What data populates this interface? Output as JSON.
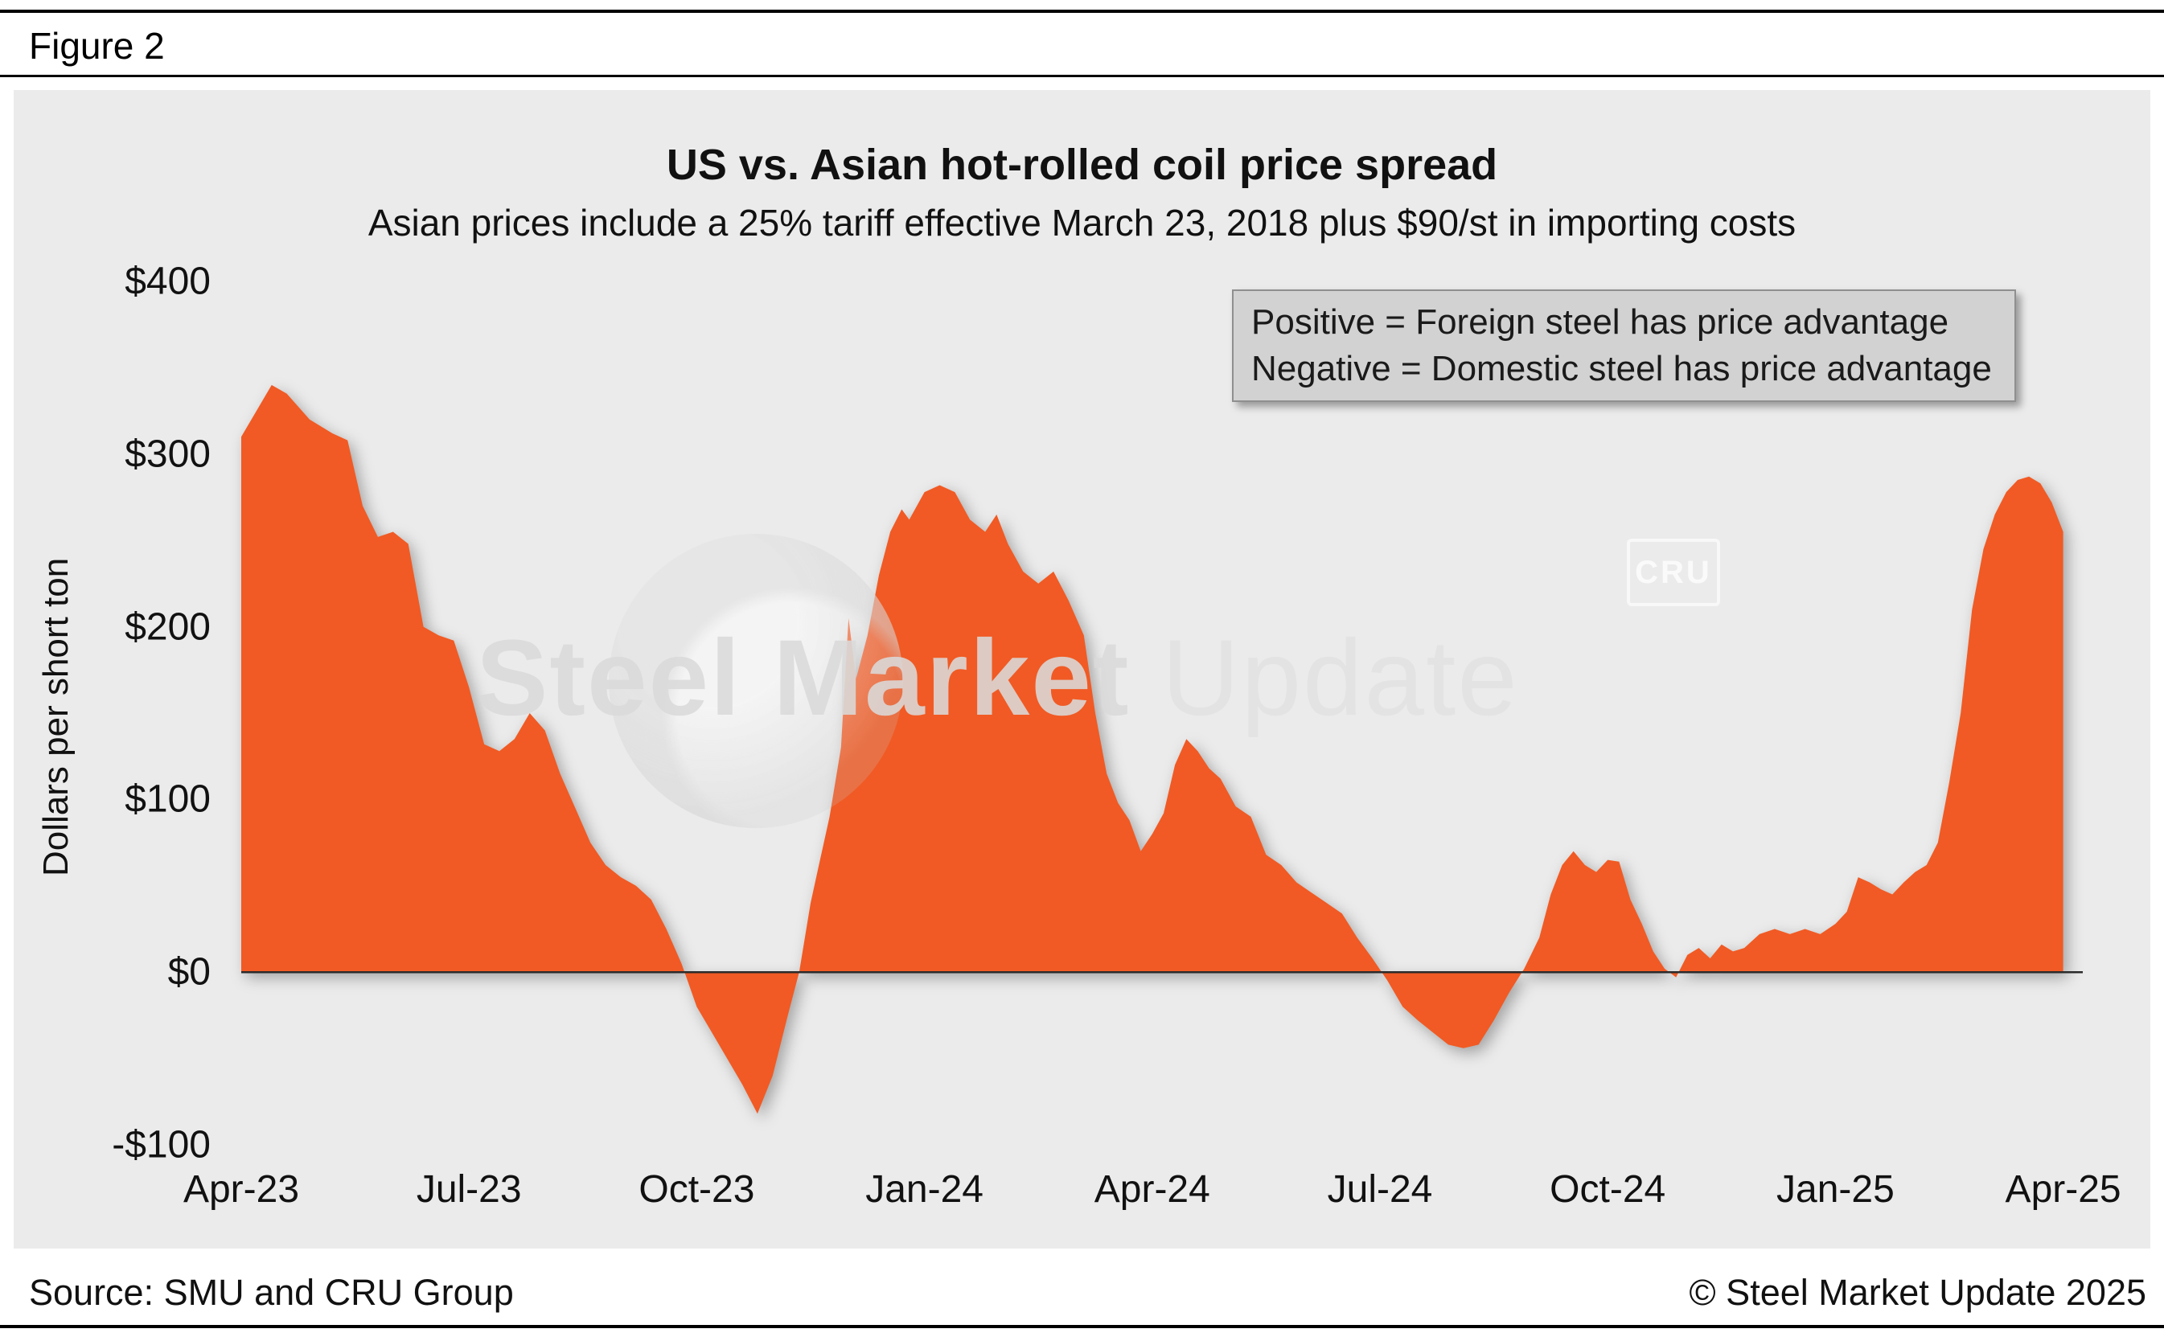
{
  "figure_label": "Figure 2",
  "chart_data": {
    "type": "area",
    "title": "US vs. Asian hot-rolled coil price spread",
    "subtitle": "Asian prices include a 25% tariff effective March 23, 2018 plus $90/st in importing costs",
    "ylabel": "Dollars per short ton",
    "ylim": [
      -100,
      400
    ],
    "xlim_months": [
      0,
      24.3
    ],
    "baseline": 0,
    "grid": false,
    "y_ticks": [
      {
        "value": 400,
        "label": "$400"
      },
      {
        "value": 300,
        "label": "$300"
      },
      {
        "value": 200,
        "label": "$200"
      },
      {
        "value": 100,
        "label": "$100"
      },
      {
        "value": 0,
        "label": "$0"
      },
      {
        "value": -100,
        "label": "-$100"
      }
    ],
    "x_ticks": [
      {
        "month": 0,
        "label": "Apr-23"
      },
      {
        "month": 3,
        "label": "Jul-23"
      },
      {
        "month": 6,
        "label": "Oct-23"
      },
      {
        "month": 9,
        "label": "Jan-24"
      },
      {
        "month": 12,
        "label": "Apr-24"
      },
      {
        "month": 15,
        "label": "Jul-24"
      },
      {
        "month": 18,
        "label": "Oct-24"
      },
      {
        "month": 21,
        "label": "Jan-25"
      },
      {
        "month": 24,
        "label": "Apr-25"
      }
    ],
    "annotation_box": {
      "lines": [
        "Positive = Foreign steel has price advantage",
        "Negative = Domestic steel has price advantage"
      ]
    },
    "series": [
      {
        "name": "US vs. Asian HRC price spread ($/short ton)",
        "color": "#f15a24",
        "points": [
          [
            0,
            310
          ],
          [
            0.2,
            325
          ],
          [
            0.4,
            340
          ],
          [
            0.6,
            335
          ],
          [
            0.9,
            320
          ],
          [
            1.2,
            312
          ],
          [
            1.4,
            308
          ],
          [
            1.6,
            270
          ],
          [
            1.8,
            252
          ],
          [
            2.0,
            255
          ],
          [
            2.2,
            248
          ],
          [
            2.4,
            200
          ],
          [
            2.6,
            195
          ],
          [
            2.8,
            192
          ],
          [
            3.0,
            165
          ],
          [
            3.2,
            132
          ],
          [
            3.4,
            128
          ],
          [
            3.6,
            135
          ],
          [
            3.8,
            150
          ],
          [
            4.0,
            140
          ],
          [
            4.2,
            115
          ],
          [
            4.4,
            95
          ],
          [
            4.6,
            75
          ],
          [
            4.8,
            62
          ],
          [
            5.0,
            55
          ],
          [
            5.2,
            50
          ],
          [
            5.4,
            42
          ],
          [
            5.6,
            25
          ],
          [
            5.8,
            5
          ],
          [
            6.0,
            -20
          ],
          [
            6.2,
            -35
          ],
          [
            6.4,
            -50
          ],
          [
            6.6,
            -65
          ],
          [
            6.8,
            -82
          ],
          [
            7.0,
            -60
          ],
          [
            7.2,
            -25
          ],
          [
            7.35,
            0
          ],
          [
            7.5,
            40
          ],
          [
            7.6,
            60
          ],
          [
            7.75,
            90
          ],
          [
            7.9,
            130
          ],
          [
            8.0,
            205
          ],
          [
            8.1,
            170
          ],
          [
            8.25,
            195
          ],
          [
            8.4,
            230
          ],
          [
            8.55,
            255
          ],
          [
            8.7,
            268
          ],
          [
            8.8,
            262
          ],
          [
            9.0,
            278
          ],
          [
            9.2,
            282
          ],
          [
            9.4,
            278
          ],
          [
            9.6,
            262
          ],
          [
            9.8,
            255
          ],
          [
            9.95,
            265
          ],
          [
            10.1,
            248
          ],
          [
            10.3,
            232
          ],
          [
            10.5,
            225
          ],
          [
            10.7,
            232
          ],
          [
            10.9,
            215
          ],
          [
            11.1,
            195
          ],
          [
            11.25,
            150
          ],
          [
            11.4,
            115
          ],
          [
            11.55,
            98
          ],
          [
            11.7,
            88
          ],
          [
            11.85,
            70
          ],
          [
            12.0,
            80
          ],
          [
            12.15,
            92
          ],
          [
            12.3,
            120
          ],
          [
            12.45,
            135
          ],
          [
            12.6,
            128
          ],
          [
            12.75,
            118
          ],
          [
            12.9,
            112
          ],
          [
            13.1,
            96
          ],
          [
            13.3,
            90
          ],
          [
            13.5,
            68
          ],
          [
            13.7,
            62
          ],
          [
            13.9,
            52
          ],
          [
            14.1,
            46
          ],
          [
            14.3,
            40
          ],
          [
            14.5,
            34
          ],
          [
            14.7,
            20
          ],
          [
            14.9,
            8
          ],
          [
            15.1,
            -5
          ],
          [
            15.3,
            -20
          ],
          [
            15.5,
            -28
          ],
          [
            15.7,
            -35
          ],
          [
            15.9,
            -42
          ],
          [
            16.1,
            -44
          ],
          [
            16.3,
            -42
          ],
          [
            16.5,
            -28
          ],
          [
            16.7,
            -12
          ],
          [
            16.9,
            2
          ],
          [
            17.1,
            20
          ],
          [
            17.25,
            45
          ],
          [
            17.4,
            62
          ],
          [
            17.55,
            70
          ],
          [
            17.7,
            62
          ],
          [
            17.85,
            58
          ],
          [
            18.0,
            65
          ],
          [
            18.15,
            64
          ],
          [
            18.3,
            42
          ],
          [
            18.45,
            28
          ],
          [
            18.6,
            12
          ],
          [
            18.75,
            2
          ],
          [
            18.9,
            -3
          ],
          [
            19.05,
            10
          ],
          [
            19.2,
            14
          ],
          [
            19.35,
            8
          ],
          [
            19.5,
            16
          ],
          [
            19.65,
            12
          ],
          [
            19.8,
            14
          ],
          [
            20.0,
            22
          ],
          [
            20.2,
            25
          ],
          [
            20.4,
            22
          ],
          [
            20.6,
            25
          ],
          [
            20.8,
            22
          ],
          [
            21.0,
            28
          ],
          [
            21.15,
            35
          ],
          [
            21.3,
            55
          ],
          [
            21.45,
            52
          ],
          [
            21.6,
            48
          ],
          [
            21.75,
            45
          ],
          [
            21.9,
            52
          ],
          [
            22.05,
            58
          ],
          [
            22.2,
            62
          ],
          [
            22.35,
            75
          ],
          [
            22.5,
            110
          ],
          [
            22.65,
            150
          ],
          [
            22.8,
            210
          ],
          [
            22.95,
            245
          ],
          [
            23.1,
            265
          ],
          [
            23.25,
            278
          ],
          [
            23.4,
            285
          ],
          [
            23.55,
            287
          ],
          [
            23.7,
            283
          ],
          [
            23.85,
            272
          ],
          [
            24.0,
            255
          ]
        ]
      }
    ]
  },
  "watermark": {
    "text_bold": "Steel Market",
    "text_light": " Update",
    "cru_label": "CRU"
  },
  "footer": {
    "source": "Source: SMU and CRU Group",
    "copyright": "© Steel Market Update 2025"
  },
  "colors": {
    "area": "#f15a24",
    "panel_background": "#ebebeb",
    "legend_background": "#d2d2d2",
    "zero_line": "#2b2b2b"
  }
}
